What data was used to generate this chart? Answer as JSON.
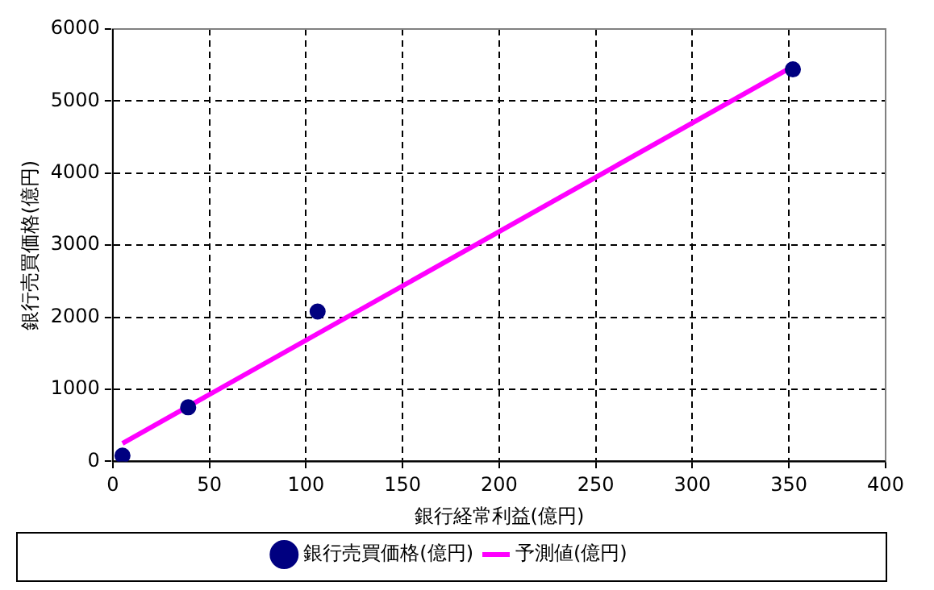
{
  "chart_data": {
    "type": "scatter",
    "xlabel": "銀行経常利益(億円)",
    "ylabel": "銀行売買価格(億円)",
    "xlim": [
      0,
      400
    ],
    "xticks": [
      0,
      50,
      100,
      150,
      200,
      250,
      300,
      350,
      400
    ],
    "ylim": [
      0,
      6000
    ],
    "yticks": [
      0,
      1000,
      2000,
      3000,
      4000,
      5000,
      6000
    ],
    "grid": true,
    "legend": "bottom",
    "marker": "circle",
    "series": [
      {
        "name": "銀行売買価格(億円)",
        "color": "#000080",
        "x": [
          5,
          39,
          106,
          352
        ],
        "values": [
          80,
          750,
          2080,
          5440
        ]
      },
      {
        "name": "予測値(億円)",
        "type": "line",
        "color": "#ff00ff",
        "marker": "none",
        "line_style": "solid",
        "x": [
          5,
          350
        ],
        "values": [
          250,
          5450
        ]
      }
    ]
  }
}
